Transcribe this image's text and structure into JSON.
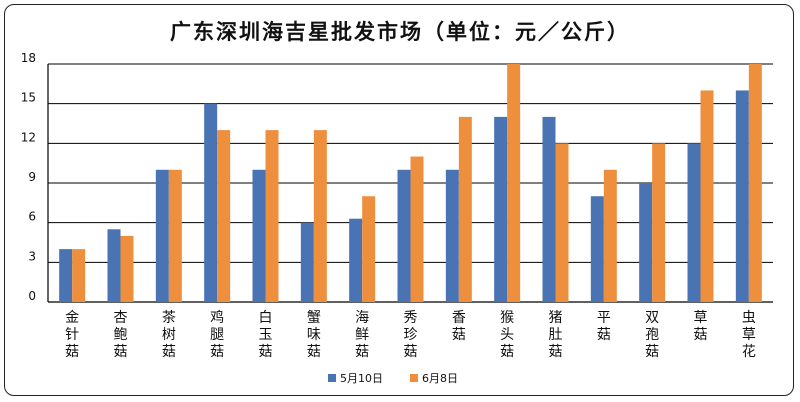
{
  "chart_data": {
    "type": "bar",
    "title": "广东深圳海吉星批发市场（单位：元／公斤）",
    "categories": [
      "金针菇",
      "杏鲍菇",
      "茶树菇",
      "鸡腿菇",
      "白玉菇",
      "蟹味菇",
      "海鲜菇",
      "秀珍菇",
      "香菇",
      "猴头菇",
      "猪肚菇",
      "平菇",
      "双孢菇",
      "草菇",
      "虫草花"
    ],
    "series": [
      {
        "name": "5月10日",
        "color": "#4a73b3",
        "values": [
          4,
          5.5,
          10,
          15,
          10,
          6,
          6.3,
          10,
          10,
          14,
          14,
          8,
          9,
          12,
          16
        ]
      },
      {
        "name": "6月8日",
        "color": "#ee8f3e",
        "values": [
          4,
          5,
          10,
          13,
          13,
          13,
          8,
          11,
          14,
          18,
          12,
          10,
          12,
          16,
          18
        ]
      }
    ],
    "y_ticks": [
      "0",
      "3",
      "6",
      "9",
      "12",
      "15",
      "18"
    ],
    "ylim": [
      0,
      18
    ],
    "grid": true,
    "legend_position": "bottom"
  }
}
